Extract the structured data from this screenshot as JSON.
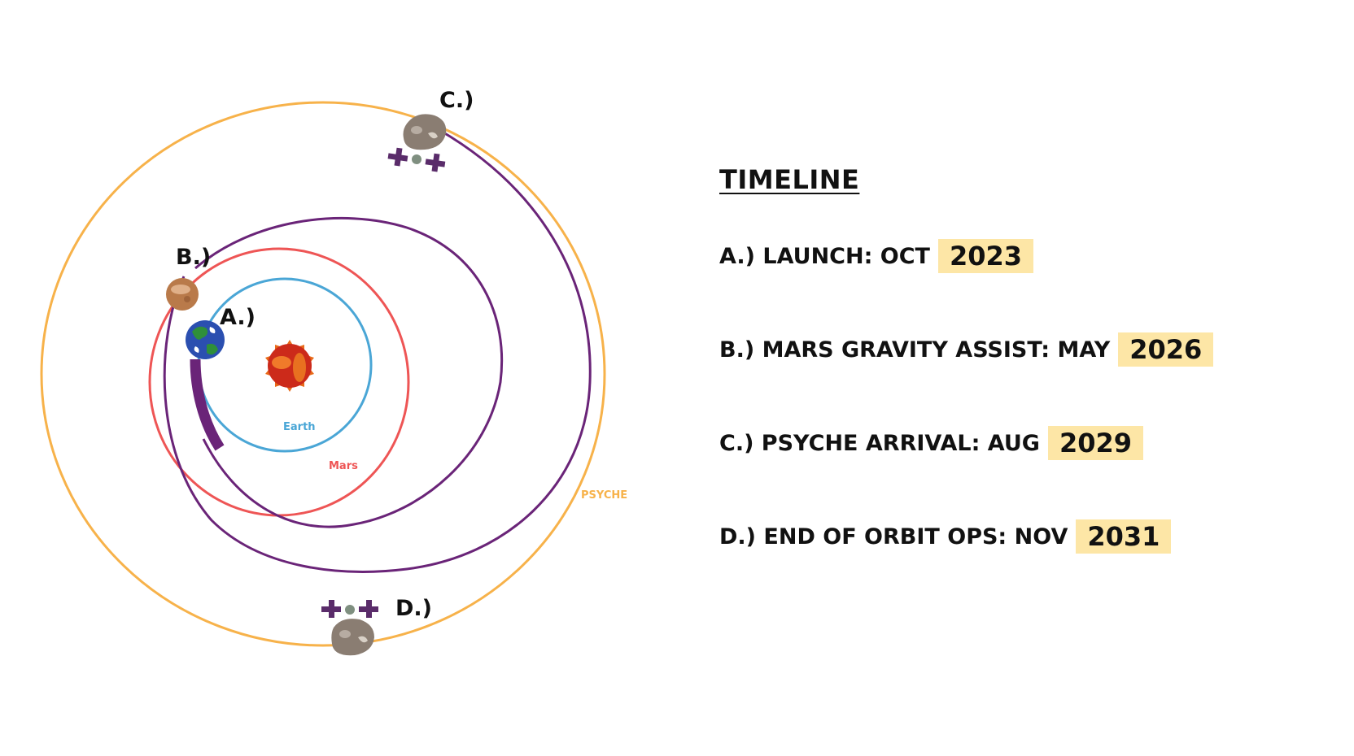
{
  "diagram": {
    "orbits": [
      {
        "id": "earth",
        "label": "Earth",
        "color": "#4aa6d6"
      },
      {
        "id": "mars",
        "label": "Mars",
        "color": "#ee5555"
      },
      {
        "id": "psyche",
        "label": "PSYCHE",
        "color": "#f7b24a"
      }
    ],
    "trajectory_color": "#6a2478",
    "points": [
      {
        "id": "a",
        "label": "A.)"
      },
      {
        "id": "b",
        "label": "B.)"
      },
      {
        "id": "c",
        "label": "C.)"
      },
      {
        "id": "d",
        "label": "D.)"
      }
    ],
    "icons": [
      "sun-icon",
      "earth-icon",
      "mars-icon",
      "asteroid-icon",
      "spacecraft-icon"
    ]
  },
  "timeline": {
    "title": "TIMELINE",
    "events": [
      {
        "label": "A.) LAUNCH: OCT",
        "year": "2023"
      },
      {
        "label": "B.) MARS GRAVITY ASSIST: MAY",
        "year": "2026"
      },
      {
        "label": "C.) PSYCHE ARRIVAL: AUG",
        "year": "2029"
      },
      {
        "label": "D.) END OF ORBIT OPS: NOV",
        "year": "2031"
      }
    ],
    "highlight_color": "#fde6a6"
  }
}
